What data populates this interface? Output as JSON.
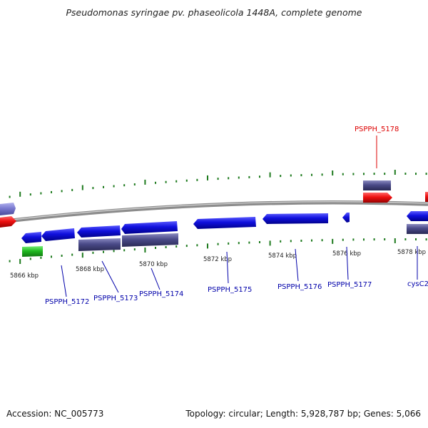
{
  "title": "Pseudomonas syringae pv. phaseolicola 1448A, complete genome",
  "footer": {
    "accession": "Accession: NC_005773",
    "topology": "Topology: circular; Length: 5,928,787 bp; Genes: 5,066"
  },
  "colors": {
    "backbone": "#8c8c8c",
    "ticks": "#1d7a1d",
    "gene_label": "#0000aa",
    "highlight_label": "#dd0000",
    "cds_blue": "#1010dd",
    "cds_slate": "#4a4a88",
    "cds_lavender": "#7a7ad0",
    "cds_red": "#ee1111",
    "cds_green": "#22bb22"
  },
  "scale_labels": [
    "5866 kbp",
    "5868 kbp",
    "5870 kbp",
    "5872 kbp",
    "5874 kbp",
    "5876 kbp",
    "5878 kbp"
  ],
  "gene_labels": [
    "PSPPH_5172",
    "PSPPH_5173",
    "PSPPH_5174",
    "PSPPH_5175",
    "PSPPH_5176",
    "PSPPH_5177",
    "cysC2"
  ],
  "highlight_label": "PSPPH_5178"
}
